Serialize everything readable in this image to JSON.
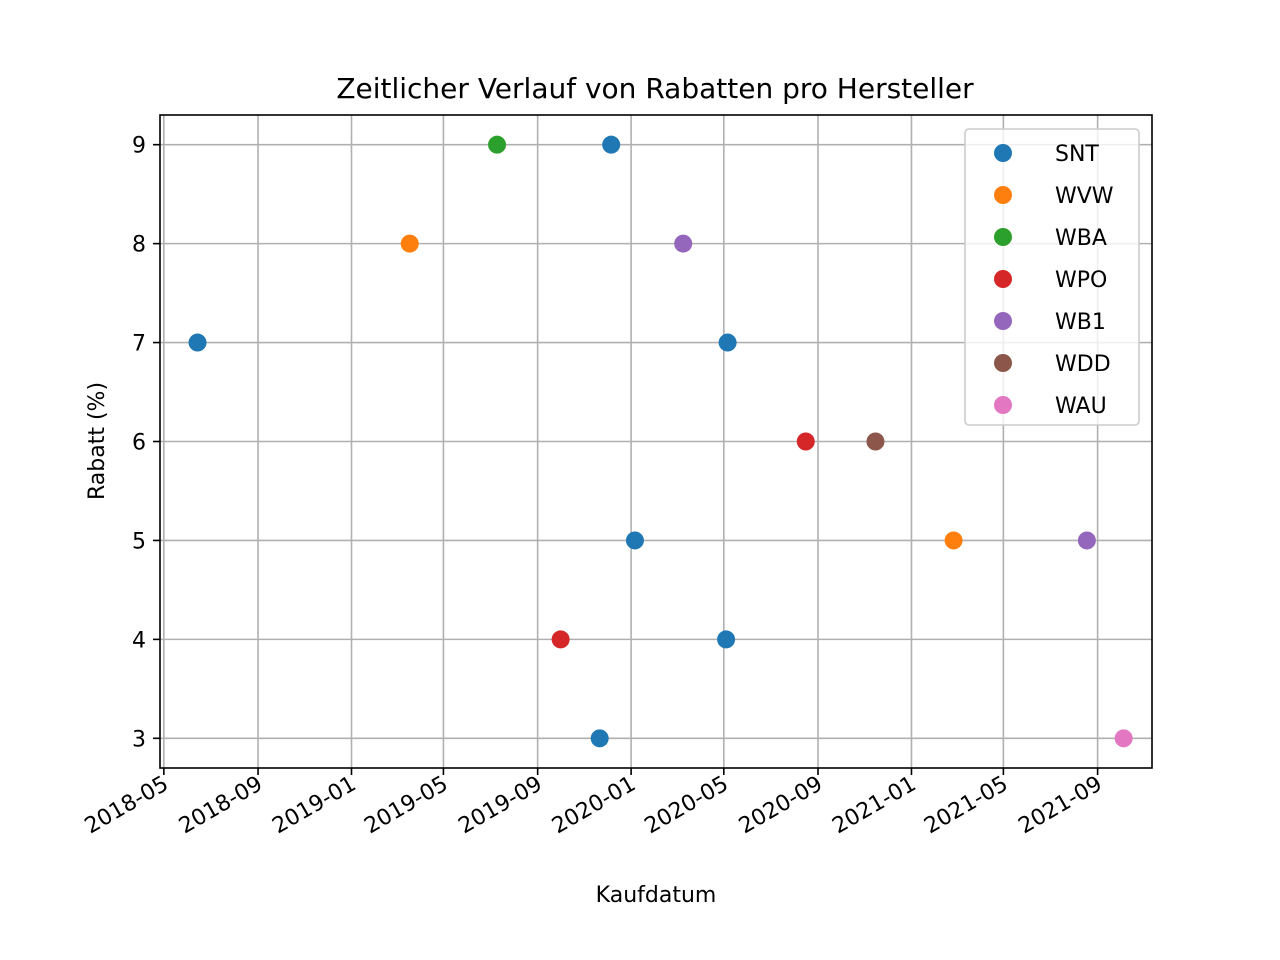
{
  "chart_data": {
    "type": "scatter",
    "title": "Zeitlicher Verlauf von Rabatten pro Hersteller",
    "xlabel": "Kaufdatum",
    "ylabel": "Rabatt (%)",
    "x_type": "date",
    "xlim": [
      "2018-04-26",
      "2021-11-11"
    ],
    "ylim": [
      2.7,
      9.3
    ],
    "x_ticks": [
      "2018-05",
      "2018-09",
      "2019-01",
      "2019-05",
      "2019-09",
      "2020-01",
      "2020-05",
      "2020-09",
      "2021-01",
      "2021-05",
      "2021-09"
    ],
    "y_ticks": [
      3,
      4,
      5,
      6,
      7,
      8,
      9
    ],
    "grid": true,
    "legend_position": "top-right",
    "series": [
      {
        "name": "SNT",
        "color": "#1f77b4",
        "points": [
          {
            "x": "2018-06-14",
            "y": 7
          },
          {
            "x": "2019-12-06",
            "y": 9
          },
          {
            "x": "2020-01-06",
            "y": 5
          },
          {
            "x": "2020-05-06",
            "y": 7
          },
          {
            "x": "2020-05-04",
            "y": 4
          },
          {
            "x": "2019-11-21",
            "y": 3
          }
        ]
      },
      {
        "name": "WVW",
        "color": "#ff7f0e",
        "points": [
          {
            "x": "2019-03-18",
            "y": 8
          },
          {
            "x": "2021-02-25",
            "y": 5
          }
        ]
      },
      {
        "name": "WBA",
        "color": "#2ca02c",
        "points": [
          {
            "x": "2019-07-10",
            "y": 9
          }
        ]
      },
      {
        "name": "WPO",
        "color": "#d62728",
        "points": [
          {
            "x": "2019-10-01",
            "y": 4
          },
          {
            "x": "2020-08-16",
            "y": 6
          }
        ]
      },
      {
        "name": "WB1",
        "color": "#9467bd",
        "points": [
          {
            "x": "2020-03-09",
            "y": 8
          },
          {
            "x": "2021-08-18",
            "y": 5
          }
        ]
      },
      {
        "name": "WDD",
        "color": "#8c564b",
        "points": [
          {
            "x": "2020-11-15",
            "y": 6
          }
        ]
      },
      {
        "name": "WAU",
        "color": "#e377c2",
        "points": [
          {
            "x": "2021-10-05",
            "y": 3
          }
        ]
      }
    ]
  }
}
